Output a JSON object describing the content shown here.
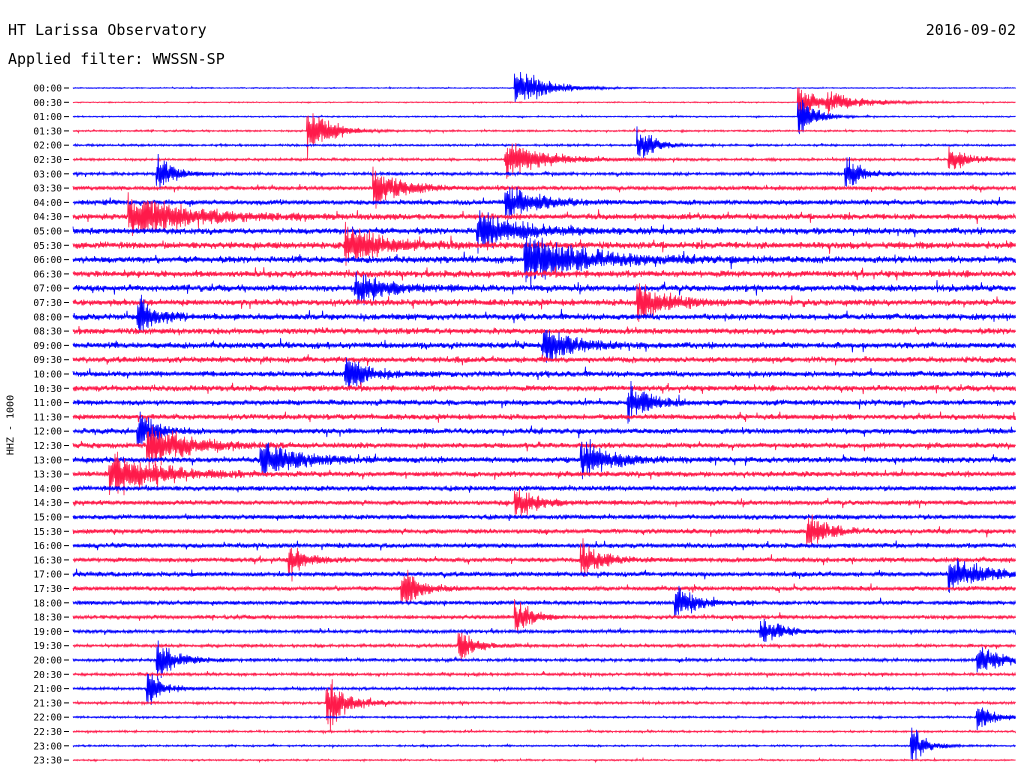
{
  "header": {
    "title": "HT Larissa Observatory",
    "date": "2016-09-02",
    "filter": "Applied filter: WWSSN-SP"
  },
  "chart_data": {
    "type": "line",
    "ylabel": "HHZ - 1000",
    "colors": [
      "#0000ff",
      "#ff1a4a"
    ],
    "rows": [
      {
        "label": "00:00"
      },
      {
        "label": "00:30"
      },
      {
        "label": "01:00"
      },
      {
        "label": "01:30"
      },
      {
        "label": "02:00"
      },
      {
        "label": "02:30"
      },
      {
        "label": "03:00"
      },
      {
        "label": "03:30"
      },
      {
        "label": "04:00"
      },
      {
        "label": "04:30"
      },
      {
        "label": "05:00"
      },
      {
        "label": "05:30"
      },
      {
        "label": "06:00"
      },
      {
        "label": "06:30"
      },
      {
        "label": "07:00"
      },
      {
        "label": "07:30"
      },
      {
        "label": "08:00"
      },
      {
        "label": "08:30"
      },
      {
        "label": "09:00"
      },
      {
        "label": "09:30"
      },
      {
        "label": "10:00"
      },
      {
        "label": "10:30"
      },
      {
        "label": "11:00"
      },
      {
        "label": "11:30"
      },
      {
        "label": "12:00"
      },
      {
        "label": "12:30"
      },
      {
        "label": "13:00"
      },
      {
        "label": "13:30"
      },
      {
        "label": "14:00"
      },
      {
        "label": "14:30"
      },
      {
        "label": "15:00"
      },
      {
        "label": "15:30"
      },
      {
        "label": "16:00"
      },
      {
        "label": "16:30"
      },
      {
        "label": "17:00"
      },
      {
        "label": "17:30"
      },
      {
        "label": "18:00"
      },
      {
        "label": "18:30"
      },
      {
        "label": "19:00"
      },
      {
        "label": "19:30"
      },
      {
        "label": "20:00"
      },
      {
        "label": "20:30"
      },
      {
        "label": "21:00"
      },
      {
        "label": "21:30"
      },
      {
        "label": "22:00"
      },
      {
        "label": "22:30"
      },
      {
        "label": "23:00"
      },
      {
        "label": "23:30"
      }
    ],
    "noise_profile": [
      0.15,
      0.15,
      0.2,
      0.25,
      0.3,
      0.35,
      0.45,
      0.6,
      0.75,
      0.85,
      0.95,
      1.0,
      1.0,
      1.0,
      0.95,
      0.95,
      0.9,
      0.9,
      0.9,
      0.85,
      0.85,
      0.85,
      0.8,
      0.8,
      0.8,
      0.8,
      0.85,
      0.8,
      0.75,
      0.7,
      0.7,
      0.7,
      0.7,
      0.7,
      0.7,
      0.65,
      0.6,
      0.55,
      0.5,
      0.45,
      0.45,
      0.4,
      0.4,
      0.35,
      0.3,
      0.28,
      0.25,
      0.22
    ],
    "events": [
      {
        "row": 0,
        "t": 0.47,
        "amp": 1.6,
        "dur": 0.03
      },
      {
        "row": 1,
        "t": 0.77,
        "amp": 1.8,
        "dur": 0.015
      },
      {
        "row": 1,
        "t": 0.8,
        "amp": 0.7,
        "dur": 0.04
      },
      {
        "row": 2,
        "t": 0.77,
        "amp": 2.0,
        "dur": 0.015
      },
      {
        "row": 3,
        "t": 0.25,
        "amp": 2.4,
        "dur": 0.02
      },
      {
        "row": 4,
        "t": 0.6,
        "amp": 1.6,
        "dur": 0.015
      },
      {
        "row": 5,
        "t": 0.46,
        "amp": 1.5,
        "dur": 0.04
      },
      {
        "row": 5,
        "t": 0.93,
        "amp": 1.0,
        "dur": 0.02
      },
      {
        "row": 6,
        "t": 0.09,
        "amp": 1.6,
        "dur": 0.015
      },
      {
        "row": 6,
        "t": 0.82,
        "amp": 1.5,
        "dur": 0.015
      },
      {
        "row": 7,
        "t": 0.32,
        "amp": 1.5,
        "dur": 0.03
      },
      {
        "row": 8,
        "t": 0.46,
        "amp": 1.5,
        "dur": 0.03
      },
      {
        "row": 9,
        "t": 0.06,
        "amp": 1.8,
        "dur": 0.06
      },
      {
        "row": 10,
        "t": 0.43,
        "amp": 1.6,
        "dur": 0.04
      },
      {
        "row": 11,
        "t": 0.29,
        "amp": 1.5,
        "dur": 0.04
      },
      {
        "row": 12,
        "t": 0.48,
        "amp": 2.0,
        "dur": 0.06
      },
      {
        "row": 14,
        "t": 0.3,
        "amp": 1.4,
        "dur": 0.03
      },
      {
        "row": 15,
        "t": 0.6,
        "amp": 1.6,
        "dur": 0.03
      },
      {
        "row": 16,
        "t": 0.07,
        "amp": 1.6,
        "dur": 0.02
      },
      {
        "row": 18,
        "t": 0.5,
        "amp": 1.5,
        "dur": 0.03
      },
      {
        "row": 20,
        "t": 0.29,
        "amp": 1.5,
        "dur": 0.02
      },
      {
        "row": 22,
        "t": 0.59,
        "amp": 1.6,
        "dur": 0.02
      },
      {
        "row": 24,
        "t": 0.07,
        "amp": 1.5,
        "dur": 0.02
      },
      {
        "row": 25,
        "t": 0.08,
        "amp": 1.8,
        "dur": 0.04
      },
      {
        "row": 26,
        "t": 0.2,
        "amp": 1.4,
        "dur": 0.04
      },
      {
        "row": 26,
        "t": 0.54,
        "amp": 1.5,
        "dur": 0.03
      },
      {
        "row": 27,
        "t": 0.04,
        "amp": 1.7,
        "dur": 0.05
      },
      {
        "row": 29,
        "t": 0.47,
        "amp": 1.4,
        "dur": 0.02
      },
      {
        "row": 31,
        "t": 0.78,
        "amp": 1.4,
        "dur": 0.02
      },
      {
        "row": 33,
        "t": 0.23,
        "amp": 1.6,
        "dur": 0.015
      },
      {
        "row": 33,
        "t": 0.54,
        "amp": 1.5,
        "dur": 0.02
      },
      {
        "row": 34,
        "t": 0.93,
        "amp": 1.2,
        "dur": 0.04
      },
      {
        "row": 35,
        "t": 0.35,
        "amp": 1.5,
        "dur": 0.02
      },
      {
        "row": 36,
        "t": 0.64,
        "amp": 1.4,
        "dur": 0.02
      },
      {
        "row": 37,
        "t": 0.47,
        "amp": 1.4,
        "dur": 0.015
      },
      {
        "row": 38,
        "t": 0.73,
        "amp": 1.2,
        "dur": 0.02
      },
      {
        "row": 39,
        "t": 0.41,
        "amp": 1.4,
        "dur": 0.015
      },
      {
        "row": 40,
        "t": 0.09,
        "amp": 1.6,
        "dur": 0.02
      },
      {
        "row": 40,
        "t": 0.96,
        "amp": 1.5,
        "dur": 0.02
      },
      {
        "row": 42,
        "t": 0.08,
        "amp": 1.3,
        "dur": 0.015
      },
      {
        "row": 43,
        "t": 0.27,
        "amp": 2.2,
        "dur": 0.02
      },
      {
        "row": 44,
        "t": 0.96,
        "amp": 1.2,
        "dur": 0.015
      },
      {
        "row": 46,
        "t": 0.89,
        "amp": 1.5,
        "dur": 0.015
      }
    ]
  }
}
